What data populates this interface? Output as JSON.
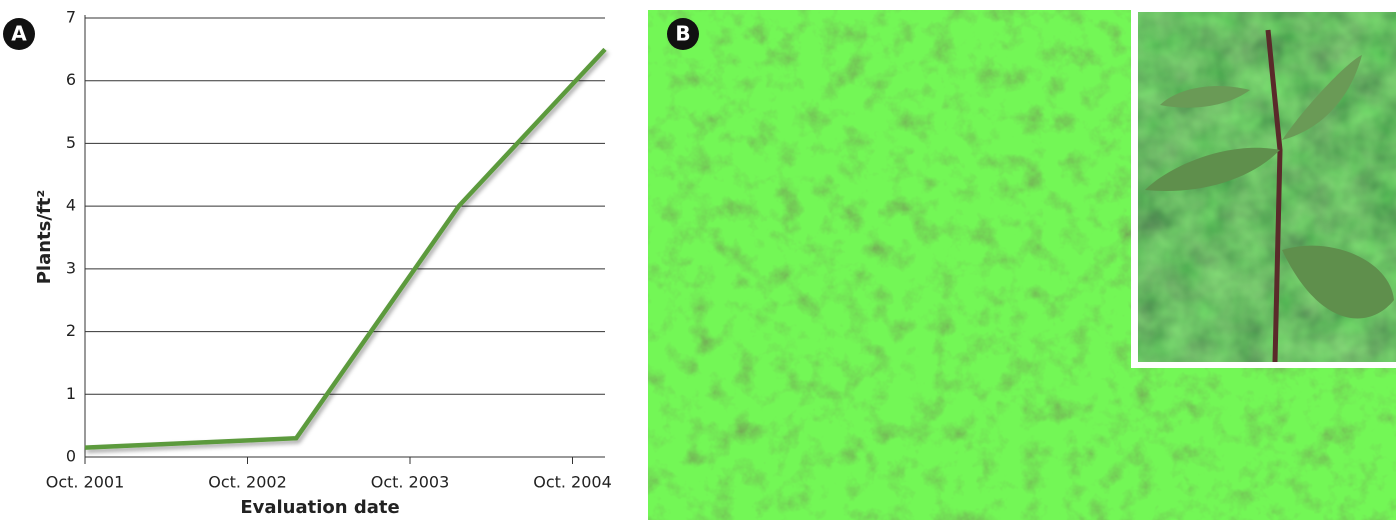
{
  "panel_a_label": "A",
  "panel_b_label": "B",
  "chart_data": {
    "type": "line",
    "xlabel": "Evaluation date",
    "ylabel": "Plants/ft²",
    "x": [
      2001,
      2002.3,
      2003.3,
      2004.2
    ],
    "series": [
      {
        "color": "#5b9a3c",
        "values": [
          0.15,
          0.3,
          4,
          6.5
        ]
      }
    ],
    "xlim": [
      2001,
      2004.2
    ],
    "xticks": [
      {
        "value": 2001,
        "label": "Oct. 2001"
      },
      {
        "value": 2002,
        "label": "Oct. 2002"
      },
      {
        "value": 2003,
        "label": "Oct. 2003"
      },
      {
        "value": 2004,
        "label": "Oct. 2004"
      }
    ],
    "ylim": [
      0,
      7
    ],
    "yticks": [
      0,
      1,
      2,
      3,
      4,
      5,
      6,
      7
    ],
    "grid": true
  }
}
